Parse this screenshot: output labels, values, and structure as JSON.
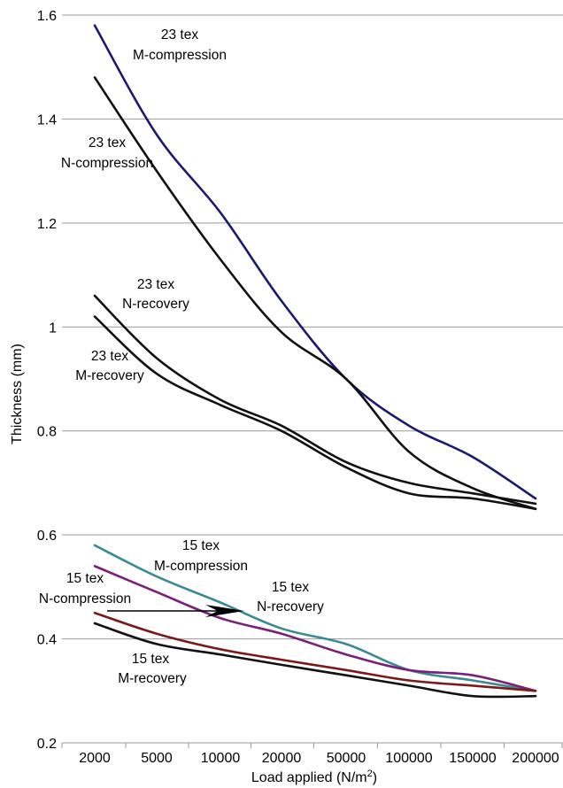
{
  "chart_data": {
    "type": "line",
    "xlabel": "Load applied (N/m",
    "xlabel_sup": "2",
    "xlabel_end": ")",
    "ylabel": "Thickness (mm)",
    "categories": [
      "2000",
      "5000",
      "10000",
      "20000",
      "50000",
      "100000",
      "150000",
      "200000"
    ],
    "ylim": [
      0.2,
      1.6
    ],
    "yticks": [
      {
        "value": 0.2,
        "label": "0.2"
      },
      {
        "value": 0.4,
        "label": "0.4"
      },
      {
        "value": 0.6,
        "label": "0.6"
      },
      {
        "value": 0.8,
        "label": "0.8"
      },
      {
        "value": 1.0,
        "label": "1"
      },
      {
        "value": 1.2,
        "label": "1.2"
      },
      {
        "value": 1.4,
        "label": "1.4"
      },
      {
        "value": 1.6,
        "label": "1.6"
      }
    ],
    "grid": true,
    "series": [
      {
        "key": "s23mc",
        "color": "#1a1a6e",
        "values": [
          1.58,
          1.37,
          1.22,
          1.05,
          0.9,
          0.81,
          0.75,
          0.67
        ]
      },
      {
        "key": "s23nc",
        "color": "#111111",
        "values": [
          1.48,
          1.3,
          1.13,
          0.99,
          0.9,
          0.76,
          0.69,
          0.65
        ]
      },
      {
        "key": "s23nr",
        "color": "#111111",
        "values": [
          1.06,
          0.94,
          0.86,
          0.81,
          0.74,
          0.7,
          0.68,
          0.66
        ]
      },
      {
        "key": "s23mr",
        "color": "#111111",
        "values": [
          1.02,
          0.91,
          0.85,
          0.8,
          0.73,
          0.68,
          0.67,
          0.65
        ]
      },
      {
        "key": "s15mc",
        "color": "#3a8a94",
        "values": [
          0.58,
          0.52,
          0.47,
          0.42,
          0.39,
          0.34,
          0.32,
          0.3
        ]
      },
      {
        "key": "s15nr",
        "color": "#7a1f7a",
        "values": [
          0.54,
          0.49,
          0.44,
          0.41,
          0.37,
          0.34,
          0.33,
          0.3
        ]
      },
      {
        "key": "s15nc",
        "color": "#7a1a1a",
        "values": [
          0.45,
          0.41,
          0.38,
          0.36,
          0.34,
          0.32,
          0.31,
          0.3
        ]
      },
      {
        "key": "s15mr",
        "color": "#111111",
        "values": [
          0.43,
          0.39,
          0.37,
          0.35,
          0.33,
          0.31,
          0.29,
          0.29
        ]
      }
    ],
    "annotations": [
      {
        "key": "a23mc",
        "line1": "23 tex",
        "line2": "M-compression"
      },
      {
        "key": "a23nc",
        "line1": "23 tex",
        "line2": "N-compression"
      },
      {
        "key": "a23nr",
        "line1": "23 tex",
        "line2": "N-recovery"
      },
      {
        "key": "a23mr",
        "line1": "23 tex",
        "line2": "M-recovery"
      },
      {
        "key": "a15mc",
        "line1": "15 tex",
        "line2": "M-compression"
      },
      {
        "key": "a15nc",
        "line1": "15 tex",
        "line2": "N-compression"
      },
      {
        "key": "a15nr",
        "line1": "15 tex",
        "line2": "N-recovery"
      },
      {
        "key": "a15mr",
        "line1": "15 tex",
        "line2": "M-recovery"
      }
    ]
  }
}
